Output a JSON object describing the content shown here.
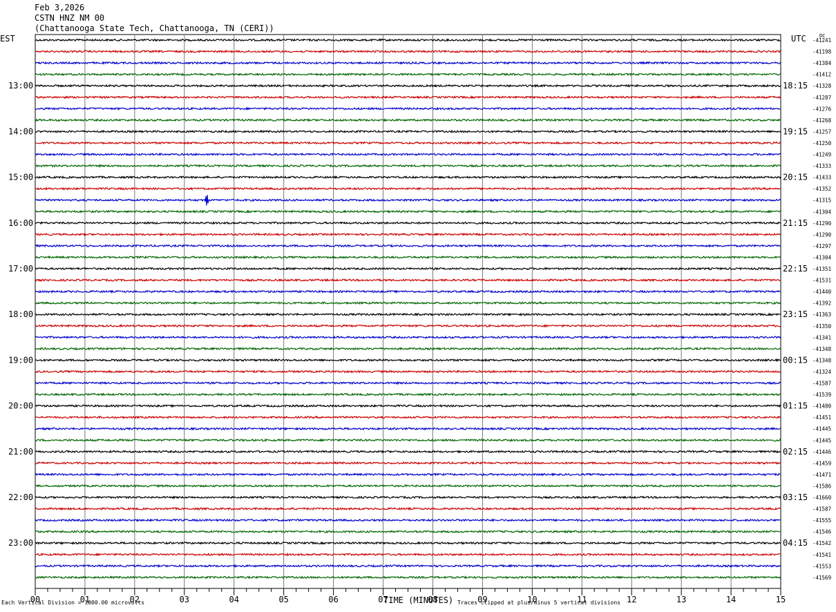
{
  "header": {
    "date": "Feb 3,2026",
    "station": "CSTN HNZ NM 00",
    "location": "(Chattanooga State Tech, Chattanooga, TN (CERI))"
  },
  "left_tz": "EST",
  "right_tz": "UTC",
  "dc_label": "DC",
  "footer": {
    "scale": "Each Vertical Division = 1000.00 microvolts",
    "xlabel": "TIME (MINUTES)",
    "clip_note": "Traces clipped at plus/minus 5 vertical divisions"
  },
  "chart_data": {
    "type": "line",
    "title": "CSTN HNZ NM 00",
    "xlabel": "TIME (MINUTES)",
    "x_ticks": [
      "00",
      "01",
      "02",
      "03",
      "04",
      "05",
      "06",
      "07",
      "08",
      "09",
      "10",
      "11",
      "12",
      "13",
      "14",
      "15"
    ],
    "xlim": [
      0,
      15
    ],
    "trace_colors": [
      "#000000",
      "#cc0000",
      "#0000cc",
      "#006600"
    ],
    "left_labels": [
      {
        "row": 4,
        "text": "13:00"
      },
      {
        "row": 8,
        "text": "14:00"
      },
      {
        "row": 12,
        "text": "15:00"
      },
      {
        "row": 16,
        "text": "16:00"
      },
      {
        "row": 20,
        "text": "17:00"
      },
      {
        "row": 24,
        "text": "18:00"
      },
      {
        "row": 28,
        "text": "19:00"
      },
      {
        "row": 32,
        "text": "20:00"
      },
      {
        "row": 36,
        "text": "21:00"
      },
      {
        "row": 40,
        "text": "22:00"
      },
      {
        "row": 44,
        "text": "23:00"
      }
    ],
    "right_labels": [
      {
        "row": 4,
        "text": "18:15"
      },
      {
        "row": 8,
        "text": "19:15"
      },
      {
        "row": 12,
        "text": "20:15"
      },
      {
        "row": 16,
        "text": "21:15"
      },
      {
        "row": 20,
        "text": "22:15"
      },
      {
        "row": 24,
        "text": "23:15"
      },
      {
        "row": 28,
        "text": "00:15"
      },
      {
        "row": 32,
        "text": "01:15"
      },
      {
        "row": 36,
        "text": "02:15"
      },
      {
        "row": 40,
        "text": "03:15"
      },
      {
        "row": 44,
        "text": "04:15"
      }
    ],
    "dc_values": [
      "-41241",
      "-41198",
      "-41384",
      "-41412",
      "-41328",
      "-41287",
      "-41276",
      "-41268",
      "-41257",
      "-41250",
      "-41249",
      "-41333",
      "-41433",
      "-41352",
      "-41315",
      "-41304",
      "-41290",
      "-41290",
      "-41297",
      "-41304",
      "-41351",
      "-41531",
      "-41440",
      "-41392",
      "-41363",
      "-41350",
      "-41341",
      "-41348",
      "-41348",
      "-41324",
      "-41587",
      "-41539",
      "-41480",
      "-41451",
      "-41445",
      "-41445",
      "-41446",
      "-41459",
      "-41471",
      "-41586",
      "-41660",
      "-41587",
      "-41555",
      "-41546",
      "-41542",
      "-41541",
      "-41553",
      "-41569"
    ],
    "events": [
      {
        "row": 14,
        "minute": 3.45,
        "amplitude": 1.2
      }
    ],
    "grid": true
  }
}
